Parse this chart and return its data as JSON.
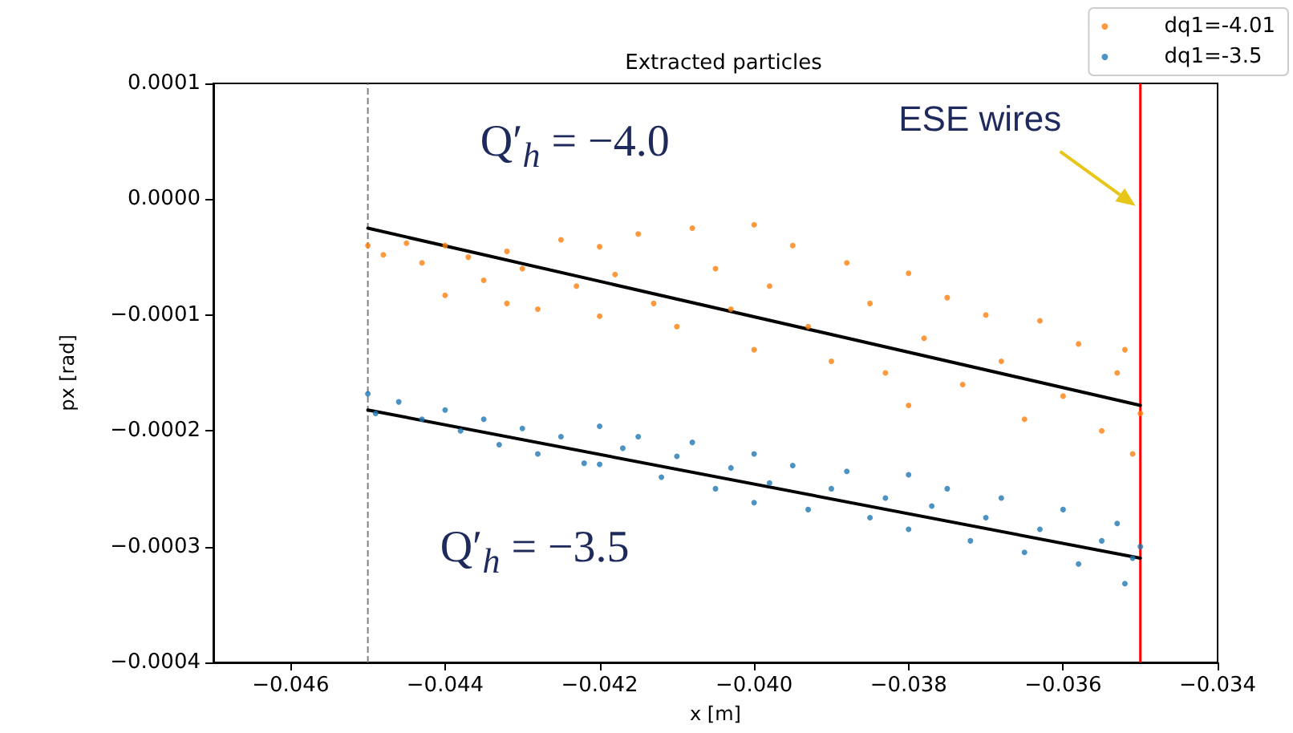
{
  "chart_data": {
    "type": "scatter",
    "title": "Extracted particles",
    "xlabel": "x [m]",
    "ylabel": "px [rad]",
    "xlim": [
      -0.047,
      -0.034
    ],
    "ylim": [
      -0.0004,
      0.0001
    ],
    "xticks": [
      {
        "value": -0.046,
        "label": "−0.046"
      },
      {
        "value": -0.044,
        "label": "−0.044"
      },
      {
        "value": -0.042,
        "label": "−0.042"
      },
      {
        "value": -0.04,
        "label": "−0.040"
      },
      {
        "value": -0.038,
        "label": "−0.038"
      },
      {
        "value": -0.036,
        "label": "−0.036"
      },
      {
        "value": -0.034,
        "label": "−0.034"
      }
    ],
    "yticks": [
      {
        "value": -0.0004,
        "label": "−0.0004"
      },
      {
        "value": -0.0003,
        "label": "−0.0003"
      },
      {
        "value": -0.0002,
        "label": "−0.0002"
      },
      {
        "value": -0.0001,
        "label": "−0.0001"
      },
      {
        "value": 0,
        "label": "0.0000"
      },
      {
        "value": 0.0001,
        "label": "0.0001"
      }
    ],
    "grid": false,
    "legend": "top right",
    "marker": "circle",
    "series": [
      {
        "name": "dq1=-4.01",
        "color": "#ff7f0e",
        "x": [
          -0.045,
          -0.0448,
          -0.0445,
          -0.0443,
          -0.044,
          -0.044,
          -0.0437,
          -0.0435,
          -0.0432,
          -0.0432,
          -0.043,
          -0.0428,
          -0.0425,
          -0.0423,
          -0.042,
          -0.042,
          -0.0418,
          -0.0415,
          -0.0413,
          -0.041,
          -0.0408,
          -0.0405,
          -0.0403,
          -0.04,
          -0.04,
          -0.0398,
          -0.0395,
          -0.0393,
          -0.039,
          -0.0388,
          -0.0385,
          -0.0383,
          -0.038,
          -0.038,
          -0.0378,
          -0.0375,
          -0.0373,
          -0.037,
          -0.0368,
          -0.0365,
          -0.0363,
          -0.036,
          -0.0358,
          -0.0355,
          -0.0353,
          -0.0352,
          -0.0351,
          -0.035
        ],
        "values": [
          -4e-05,
          -4.8e-05,
          -3.8e-05,
          -5.5e-05,
          -4e-05,
          -8.3e-05,
          -5e-05,
          -7e-05,
          -4.5e-05,
          -9e-05,
          -6e-05,
          -9.5e-05,
          -3.5e-05,
          -7.5e-05,
          -4.1e-05,
          -0.000101,
          -6.5e-05,
          -3e-05,
          -9e-05,
          -0.00011,
          -2.5e-05,
          -6e-05,
          -9.5e-05,
          -2.2e-05,
          -0.00013,
          -7.5e-05,
          -4e-05,
          -0.00011,
          -0.00014,
          -5.5e-05,
          -9e-05,
          -0.00015,
          -6.4e-05,
          -0.000178,
          -0.00012,
          -8.5e-05,
          -0.00016,
          -0.0001,
          -0.00014,
          -0.00019,
          -0.000105,
          -0.00017,
          -0.000125,
          -0.0002,
          -0.00015,
          -0.00013,
          -0.00022,
          -0.000185
        ]
      },
      {
        "name": "dq1=-3.5",
        "color": "#1f77b4",
        "x": [
          -0.045,
          -0.0449,
          -0.0446,
          -0.0443,
          -0.044,
          -0.0438,
          -0.0435,
          -0.0433,
          -0.043,
          -0.0428,
          -0.0425,
          -0.0422,
          -0.042,
          -0.042,
          -0.0417,
          -0.0415,
          -0.0412,
          -0.041,
          -0.0408,
          -0.0405,
          -0.0403,
          -0.04,
          -0.04,
          -0.0398,
          -0.0395,
          -0.0393,
          -0.039,
          -0.0388,
          -0.0385,
          -0.0383,
          -0.038,
          -0.038,
          -0.0377,
          -0.0375,
          -0.0372,
          -0.037,
          -0.0368,
          -0.0365,
          -0.0363,
          -0.036,
          -0.0358,
          -0.0355,
          -0.0353,
          -0.0352,
          -0.0351,
          -0.035
        ],
        "values": [
          -0.000168,
          -0.000185,
          -0.000175,
          -0.00019,
          -0.000182,
          -0.0002,
          -0.00019,
          -0.000212,
          -0.000198,
          -0.00022,
          -0.000205,
          -0.000228,
          -0.000196,
          -0.000229,
          -0.000215,
          -0.000205,
          -0.00024,
          -0.000222,
          -0.00021,
          -0.00025,
          -0.000232,
          -0.00022,
          -0.000262,
          -0.000245,
          -0.00023,
          -0.000268,
          -0.00025,
          -0.000235,
          -0.000275,
          -0.000258,
          -0.000238,
          -0.000285,
          -0.000265,
          -0.00025,
          -0.000295,
          -0.000275,
          -0.000258,
          -0.000305,
          -0.000285,
          -0.000268,
          -0.000315,
          -0.000295,
          -0.00028,
          -0.000332,
          -0.00031,
          -0.0003
        ]
      },
      {
        "type": "line",
        "color": "#000000",
        "marker": "none",
        "line_style": "solid",
        "x": [
          -0.045,
          -0.035
        ],
        "values": [
          -2.5e-05,
          -0.000178
        ]
      },
      {
        "type": "line",
        "color": "#000000",
        "marker": "none",
        "line_style": "solid",
        "x": [
          -0.045,
          -0.035
        ],
        "values": [
          -0.000182,
          -0.00031
        ]
      }
    ],
    "ref_lines": [
      {
        "axis": "x",
        "value": -0.045,
        "color": "#808080",
        "line_style": "dashed"
      },
      {
        "axis": "x",
        "value": -0.035,
        "color": "#ff0000",
        "line_style": "solid",
        "label": "ESE wires"
      }
    ],
    "annotations": [
      "Q′$_{h}$ = −4.0",
      "Q′$_{h}$ = −3.5"
    ]
  }
}
